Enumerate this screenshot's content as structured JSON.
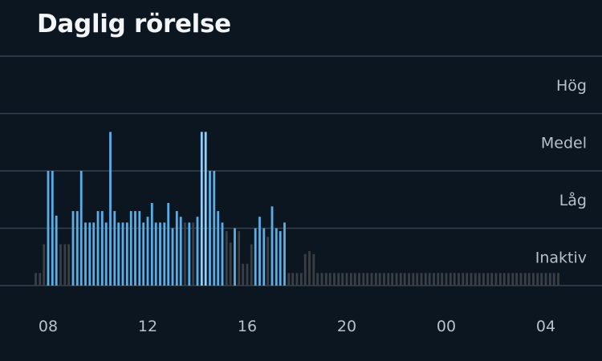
{
  "header": {
    "title": "Daglig rörelse"
  },
  "chart_data": {
    "type": "bar",
    "title": "Daglig rörelse",
    "levels": [
      "Inaktiv",
      "Låg",
      "Medel",
      "Hög"
    ],
    "x_ticks": [
      "08",
      "12",
      "16",
      "20",
      "00",
      "04"
    ],
    "xlabel": "",
    "ylabel": "",
    "x_unit": "hour of day (08:00 to 04:30 next day)",
    "y_scale": "activity level: 0 = baseline, 1 = Inaktiv, 2 = Låg, 3 = Medel, 4 = Hög",
    "ylim": [
      0,
      4
    ],
    "grid": true,
    "colors": {
      "active": "#5aaee8",
      "peak": "#8fd0ff",
      "inactive": "#3a3f45",
      "grid": "#34404d"
    },
    "bars": [
      {
        "t": 7.5,
        "v": 0.22,
        "s": "inactive"
      },
      {
        "t": 7.67,
        "v": 0.22,
        "s": "inactive"
      },
      {
        "t": 7.83,
        "v": 0.72,
        "s": "inactive"
      },
      {
        "t": 8.0,
        "v": 2.0,
        "s": "active"
      },
      {
        "t": 8.17,
        "v": 2.0,
        "s": "active"
      },
      {
        "t": 8.33,
        "v": 1.22,
        "s": "active"
      },
      {
        "t": 8.5,
        "v": 0.72,
        "s": "inactive"
      },
      {
        "t": 8.67,
        "v": 0.72,
        "s": "inactive"
      },
      {
        "t": 8.83,
        "v": 0.72,
        "s": "inactive"
      },
      {
        "t": 9.0,
        "v": 1.3,
        "s": "active"
      },
      {
        "t": 9.17,
        "v": 1.3,
        "s": "active"
      },
      {
        "t": 9.33,
        "v": 2.0,
        "s": "active"
      },
      {
        "t": 9.5,
        "v": 1.1,
        "s": "active"
      },
      {
        "t": 9.67,
        "v": 1.1,
        "s": "active"
      },
      {
        "t": 9.83,
        "v": 1.1,
        "s": "active"
      },
      {
        "t": 10.0,
        "v": 1.3,
        "s": "active"
      },
      {
        "t": 10.17,
        "v": 1.3,
        "s": "active"
      },
      {
        "t": 10.33,
        "v": 1.1,
        "s": "active"
      },
      {
        "t": 10.5,
        "v": 2.68,
        "s": "active"
      },
      {
        "t": 10.67,
        "v": 1.3,
        "s": "active"
      },
      {
        "t": 10.83,
        "v": 1.1,
        "s": "active"
      },
      {
        "t": 11.0,
        "v": 1.1,
        "s": "active"
      },
      {
        "t": 11.17,
        "v": 1.1,
        "s": "active"
      },
      {
        "t": 11.33,
        "v": 1.3,
        "s": "active"
      },
      {
        "t": 11.5,
        "v": 1.3,
        "s": "active"
      },
      {
        "t": 11.67,
        "v": 1.3,
        "s": "active"
      },
      {
        "t": 11.83,
        "v": 1.1,
        "s": "active"
      },
      {
        "t": 12.0,
        "v": 1.2,
        "s": "active"
      },
      {
        "t": 12.17,
        "v": 1.44,
        "s": "active"
      },
      {
        "t": 12.33,
        "v": 1.1,
        "s": "active"
      },
      {
        "t": 12.5,
        "v": 1.1,
        "s": "active"
      },
      {
        "t": 12.67,
        "v": 1.1,
        "s": "active"
      },
      {
        "t": 12.83,
        "v": 1.44,
        "s": "active"
      },
      {
        "t": 13.0,
        "v": 1.0,
        "s": "active"
      },
      {
        "t": 13.17,
        "v": 1.3,
        "s": "active"
      },
      {
        "t": 13.33,
        "v": 1.2,
        "s": "active"
      },
      {
        "t": 13.5,
        "v": 1.1,
        "s": "inactive"
      },
      {
        "t": 13.67,
        "v": 1.1,
        "s": "active"
      },
      {
        "t": 13.83,
        "v": 1.1,
        "s": "inactive"
      },
      {
        "t": 14.0,
        "v": 1.2,
        "s": "active"
      },
      {
        "t": 14.17,
        "v": 2.68,
        "s": "peak"
      },
      {
        "t": 14.33,
        "v": 2.68,
        "s": "peak"
      },
      {
        "t": 14.5,
        "v": 2.0,
        "s": "active"
      },
      {
        "t": 14.67,
        "v": 2.0,
        "s": "active"
      },
      {
        "t": 14.83,
        "v": 1.3,
        "s": "active"
      },
      {
        "t": 15.0,
        "v": 1.1,
        "s": "active"
      },
      {
        "t": 15.17,
        "v": 0.95,
        "s": "inactive"
      },
      {
        "t": 15.33,
        "v": 0.75,
        "s": "inactive"
      },
      {
        "t": 15.5,
        "v": 1.0,
        "s": "active"
      },
      {
        "t": 15.67,
        "v": 0.95,
        "s": "inactive"
      },
      {
        "t": 15.83,
        "v": 0.38,
        "s": "inactive"
      },
      {
        "t": 16.0,
        "v": 0.38,
        "s": "inactive"
      },
      {
        "t": 16.17,
        "v": 0.72,
        "s": "inactive"
      },
      {
        "t": 16.33,
        "v": 1.0,
        "s": "active"
      },
      {
        "t": 16.5,
        "v": 1.2,
        "s": "active"
      },
      {
        "t": 16.67,
        "v": 1.0,
        "s": "active"
      },
      {
        "t": 16.83,
        "v": 0.85,
        "s": "inactive"
      },
      {
        "t": 17.0,
        "v": 1.38,
        "s": "active"
      },
      {
        "t": 17.17,
        "v": 1.0,
        "s": "active"
      },
      {
        "t": 17.33,
        "v": 0.95,
        "s": "active"
      },
      {
        "t": 17.5,
        "v": 1.1,
        "s": "active"
      },
      {
        "t": 17.67,
        "v": 0.22,
        "s": "inactive"
      },
      {
        "t": 17.83,
        "v": 0.22,
        "s": "inactive"
      },
      {
        "t": 18.0,
        "v": 0.22,
        "s": "inactive"
      },
      {
        "t": 18.17,
        "v": 0.22,
        "s": "inactive"
      },
      {
        "t": 18.33,
        "v": 0.55,
        "s": "inactive"
      },
      {
        "t": 18.5,
        "v": 0.6,
        "s": "inactive"
      },
      {
        "t": 18.67,
        "v": 0.55,
        "s": "inactive"
      },
      {
        "t": 18.83,
        "v": 0.22,
        "s": "inactive"
      },
      {
        "t": 19.0,
        "v": 0.22,
        "s": "inactive"
      },
      {
        "t": 19.17,
        "v": 0.22,
        "s": "inactive"
      },
      {
        "t": 19.33,
        "v": 0.22,
        "s": "inactive"
      },
      {
        "t": 19.5,
        "v": 0.22,
        "s": "inactive"
      },
      {
        "t": 19.67,
        "v": 0.22,
        "s": "inactive"
      },
      {
        "t": 19.83,
        "v": 0.22,
        "s": "inactive"
      },
      {
        "t": 20.0,
        "v": 0.22,
        "s": "inactive"
      },
      {
        "t": 20.17,
        "v": 0.22,
        "s": "inactive"
      },
      {
        "t": 20.33,
        "v": 0.22,
        "s": "inactive"
      },
      {
        "t": 20.5,
        "v": 0.22,
        "s": "inactive"
      },
      {
        "t": 20.67,
        "v": 0.22,
        "s": "inactive"
      },
      {
        "t": 20.83,
        "v": 0.22,
        "s": "inactive"
      },
      {
        "t": 21.0,
        "v": 0.22,
        "s": "inactive"
      },
      {
        "t": 21.17,
        "v": 0.22,
        "s": "inactive"
      },
      {
        "t": 21.33,
        "v": 0.22,
        "s": "inactive"
      },
      {
        "t": 21.5,
        "v": 0.22,
        "s": "inactive"
      },
      {
        "t": 21.67,
        "v": 0.22,
        "s": "inactive"
      },
      {
        "t": 21.83,
        "v": 0.22,
        "s": "inactive"
      },
      {
        "t": 22.0,
        "v": 0.22,
        "s": "inactive"
      },
      {
        "t": 22.17,
        "v": 0.22,
        "s": "inactive"
      },
      {
        "t": 22.33,
        "v": 0.22,
        "s": "inactive"
      },
      {
        "t": 22.5,
        "v": 0.22,
        "s": "inactive"
      },
      {
        "t": 22.67,
        "v": 0.22,
        "s": "inactive"
      },
      {
        "t": 22.83,
        "v": 0.22,
        "s": "inactive"
      },
      {
        "t": 23.0,
        "v": 0.22,
        "s": "inactive"
      },
      {
        "t": 23.17,
        "v": 0.22,
        "s": "inactive"
      },
      {
        "t": 23.33,
        "v": 0.22,
        "s": "inactive"
      },
      {
        "t": 23.5,
        "v": 0.22,
        "s": "inactive"
      },
      {
        "t": 23.67,
        "v": 0.22,
        "s": "inactive"
      },
      {
        "t": 23.83,
        "v": 0.22,
        "s": "inactive"
      },
      {
        "t": 24.0,
        "v": 0.22,
        "s": "inactive"
      },
      {
        "t": 24.17,
        "v": 0.22,
        "s": "inactive"
      },
      {
        "t": 24.33,
        "v": 0.22,
        "s": "inactive"
      },
      {
        "t": 24.5,
        "v": 0.22,
        "s": "inactive"
      },
      {
        "t": 24.67,
        "v": 0.22,
        "s": "inactive"
      },
      {
        "t": 24.83,
        "v": 0.22,
        "s": "inactive"
      },
      {
        "t": 25.0,
        "v": 0.22,
        "s": "inactive"
      },
      {
        "t": 25.17,
        "v": 0.22,
        "s": "inactive"
      },
      {
        "t": 25.33,
        "v": 0.22,
        "s": "inactive"
      },
      {
        "t": 25.5,
        "v": 0.22,
        "s": "inactive"
      },
      {
        "t": 25.67,
        "v": 0.22,
        "s": "inactive"
      },
      {
        "t": 25.83,
        "v": 0.22,
        "s": "inactive"
      },
      {
        "t": 26.0,
        "v": 0.22,
        "s": "inactive"
      },
      {
        "t": 26.17,
        "v": 0.22,
        "s": "inactive"
      },
      {
        "t": 26.33,
        "v": 0.22,
        "s": "inactive"
      },
      {
        "t": 26.5,
        "v": 0.22,
        "s": "inactive"
      },
      {
        "t": 26.67,
        "v": 0.22,
        "s": "inactive"
      },
      {
        "t": 26.83,
        "v": 0.22,
        "s": "inactive"
      },
      {
        "t": 27.0,
        "v": 0.22,
        "s": "inactive"
      },
      {
        "t": 27.17,
        "v": 0.22,
        "s": "inactive"
      },
      {
        "t": 27.33,
        "v": 0.22,
        "s": "inactive"
      },
      {
        "t": 27.5,
        "v": 0.22,
        "s": "inactive"
      },
      {
        "t": 27.67,
        "v": 0.22,
        "s": "inactive"
      },
      {
        "t": 27.83,
        "v": 0.22,
        "s": "inactive"
      },
      {
        "t": 28.0,
        "v": 0.22,
        "s": "inactive"
      },
      {
        "t": 28.17,
        "v": 0.22,
        "s": "inactive"
      },
      {
        "t": 28.33,
        "v": 0.22,
        "s": "inactive"
      },
      {
        "t": 28.5,
        "v": 0.22,
        "s": "inactive"
      }
    ]
  }
}
